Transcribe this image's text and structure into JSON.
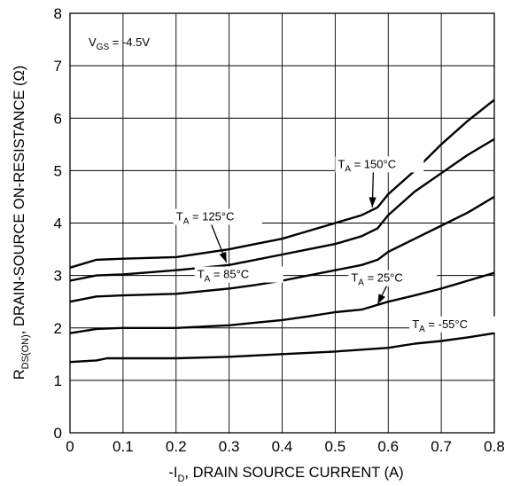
{
  "chart_data": {
    "type": "line",
    "xlabel": {
      "prefix": "-I",
      "sub": "D",
      "suffix": ", DRAIN SOURCE CURRENT (A)"
    },
    "ylabel": {
      "prefix": "R",
      "sub": "DS(ON)",
      "suffix": ", DRAIN-SOURCE ON-RESISTANCE (Ω)"
    },
    "xlim": [
      0,
      0.8
    ],
    "ylim": [
      0,
      8
    ],
    "x_ticks": [
      "0",
      "0.1",
      "0.2",
      "0.3",
      "0.4",
      "0.5",
      "0.6",
      "0.7",
      "0.8"
    ],
    "y_ticks": [
      "0",
      "1",
      "2",
      "3",
      "4",
      "5",
      "6",
      "7",
      "8"
    ],
    "grid": true,
    "condition": {
      "prefix": "V",
      "sub": "GS",
      "suffix": " = -4.5V"
    },
    "series": [
      {
        "name": "T_A = 150°C",
        "x": [
          0,
          0.05,
          0.1,
          0.2,
          0.3,
          0.35,
          0.4,
          0.45,
          0.5,
          0.55,
          0.58,
          0.6,
          0.65,
          0.7,
          0.75,
          0.8
        ],
        "y": [
          3.15,
          3.3,
          3.32,
          3.35,
          3.5,
          3.6,
          3.7,
          3.85,
          4.0,
          4.15,
          4.3,
          4.55,
          5.0,
          5.5,
          5.95,
          6.35
        ]
      },
      {
        "name": "T_A = 125°C",
        "x": [
          0,
          0.05,
          0.1,
          0.2,
          0.3,
          0.35,
          0.4,
          0.45,
          0.5,
          0.55,
          0.58,
          0.6,
          0.65,
          0.7,
          0.75,
          0.8
        ],
        "y": [
          2.9,
          3.0,
          3.02,
          3.1,
          3.2,
          3.3,
          3.4,
          3.5,
          3.6,
          3.75,
          3.9,
          4.15,
          4.6,
          4.95,
          5.3,
          5.6
        ]
      },
      {
        "name": "T_A = 85°C",
        "x": [
          0,
          0.05,
          0.1,
          0.2,
          0.3,
          0.35,
          0.4,
          0.45,
          0.5,
          0.55,
          0.58,
          0.6,
          0.65,
          0.7,
          0.75,
          0.8
        ],
        "y": [
          2.5,
          2.6,
          2.62,
          2.65,
          2.75,
          2.82,
          2.9,
          3.0,
          3.1,
          3.2,
          3.3,
          3.45,
          3.7,
          3.95,
          4.2,
          4.5
        ]
      },
      {
        "name": "T_A = 25°C",
        "x": [
          0,
          0.05,
          0.1,
          0.2,
          0.3,
          0.35,
          0.4,
          0.45,
          0.5,
          0.55,
          0.6,
          0.65,
          0.7,
          0.75,
          0.8
        ],
        "y": [
          1.9,
          1.98,
          2.0,
          2.0,
          2.05,
          2.1,
          2.15,
          2.22,
          2.3,
          2.35,
          2.5,
          2.62,
          2.75,
          2.9,
          3.05
        ]
      },
      {
        "name": "T_A = -55°C",
        "x": [
          0,
          0.05,
          0.07,
          0.1,
          0.2,
          0.3,
          0.4,
          0.5,
          0.6,
          0.65,
          0.7,
          0.75,
          0.8
        ],
        "y": [
          1.35,
          1.38,
          1.42,
          1.42,
          1.42,
          1.45,
          1.5,
          1.55,
          1.62,
          1.7,
          1.75,
          1.82,
          1.9
        ]
      }
    ],
    "annotations": [
      {
        "prefix": "T",
        "sub": "A",
        "suffix": " = 150°C",
        "series": 0,
        "text_x": 0.505,
        "text_y": 5.05,
        "arrow_x": 0.57,
        "arrow_y": 4.3
      },
      {
        "prefix": "T",
        "sub": "A",
        "suffix": " = 125°C",
        "series": 1,
        "text_x": 0.2,
        "text_y": 4.05,
        "arrow_x": 0.295,
        "arrow_y": 3.25
      },
      {
        "prefix": "T",
        "sub": "A",
        "suffix": " = 85°C",
        "series": 2,
        "text_x": 0.24,
        "text_y": 2.95,
        "arrow_x": null,
        "arrow_y": null
      },
      {
        "prefix": "T",
        "sub": "A",
        "suffix": " = 25°C",
        "series": 3,
        "text_x": 0.53,
        "text_y": 2.88,
        "arrow_x": 0.58,
        "arrow_y": 2.45
      },
      {
        "prefix": "T",
        "sub": "A",
        "suffix": " = -55°C",
        "series": 4,
        "text_x": 0.645,
        "text_y": 2.0,
        "arrow_x": null,
        "arrow_y": null
      }
    ]
  }
}
